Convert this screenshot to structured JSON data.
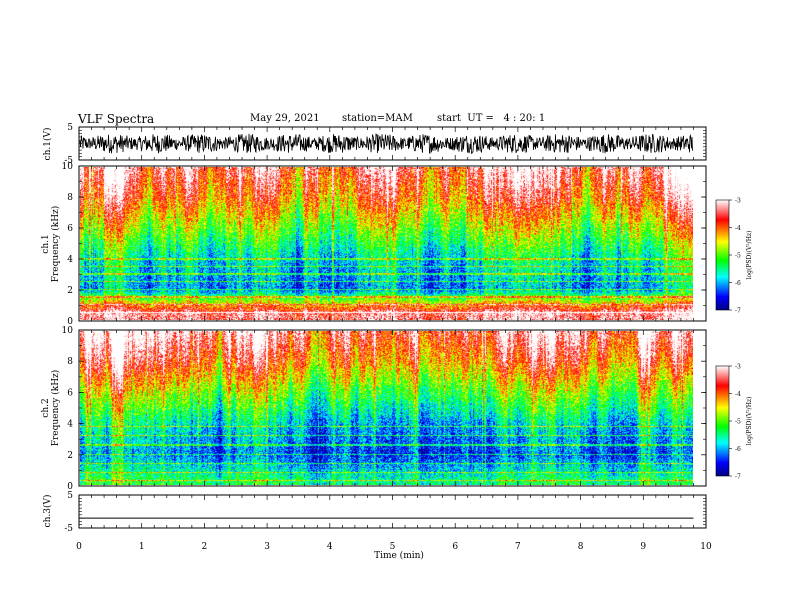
{
  "header": {
    "title": "VLF Spectra",
    "date": "May 29, 2021",
    "station": "station=MAM",
    "start": "start  UT =   4 : 20: 1"
  },
  "chart_data": [
    {
      "type": "line",
      "panel": "ch1-waveform",
      "ylabel": "ch.1(V)",
      "ylim": [
        -5,
        5
      ],
      "yticks": [
        "5",
        "-5"
      ],
      "note": "dense broadband noise waveform spanning roughly -3 to +3 V",
      "amplitude_range": [
        -3,
        3
      ]
    },
    {
      "type": "heatmap",
      "panel": "ch1-spectrogram",
      "ylabel_line1": "ch.1",
      "ylabel_line2": "Frequency (kHz)",
      "ylim": [
        0,
        10
      ],
      "yticks": [
        "0",
        "2",
        "4",
        "6",
        "8",
        "10"
      ],
      "colorbar": {
        "label": "log(PSD)(V²/Hz)",
        "range": [
          -7,
          -3
        ],
        "ticks": [
          "-3",
          "-4",
          "-5",
          "-6",
          "-7"
        ]
      },
      "lines_khz": [
        0.5,
        1.0,
        1.5,
        2.0,
        2.5,
        3.0,
        3.5,
        4.0
      ],
      "strong_line_khz": 0.5,
      "profile_log_psd": [
        {
          "freq_khz": 0.5,
          "log_psd": -3.3
        },
        {
          "freq_khz": 2,
          "log_psd": -6.1
        },
        {
          "freq_khz": 4,
          "log_psd": -5.7
        },
        {
          "freq_khz": 6,
          "log_psd": -4.8
        },
        {
          "freq_khz": 8,
          "log_psd": -3.9
        },
        {
          "freq_khz": 10,
          "log_psd": -3.3
        }
      ]
    },
    {
      "type": "heatmap",
      "panel": "ch2-spectrogram",
      "ylabel_line1": "ch.2",
      "ylabel_line2": "Frequency (kHz)",
      "ylim": [
        0,
        10
      ],
      "yticks": [
        "0",
        "2",
        "4",
        "6",
        "8",
        "10"
      ],
      "colorbar": {
        "label": "log(PSD)(V²/Hz)",
        "range": [
          -7,
          -3
        ],
        "ticks": [
          "-3",
          "-4",
          "-5",
          "-6",
          "-7"
        ]
      },
      "lines_khz": [
        0.3,
        0.8,
        1.4,
        2.0,
        2.6,
        3.2,
        3.8
      ],
      "profile_log_psd": [
        {
          "freq_khz": 0.3,
          "log_psd": -5.4
        },
        {
          "freq_khz": 2,
          "log_psd": -6.3
        },
        {
          "freq_khz": 4,
          "log_psd": -5.8
        },
        {
          "freq_khz": 6,
          "log_psd": -4.9
        },
        {
          "freq_khz": 8,
          "log_psd": -3.9
        },
        {
          "freq_khz": 10,
          "log_psd": -3.2
        }
      ]
    },
    {
      "type": "line",
      "panel": "ch3-waveform",
      "ylabel": "ch.3(V)",
      "ylim": [
        -5,
        5
      ],
      "yticks": [
        "5",
        "-5"
      ],
      "values": [
        -2,
        -2
      ],
      "x": [
        0,
        9.8
      ]
    }
  ],
  "xaxis": {
    "label": "Time (min)",
    "range": [
      0,
      10
    ],
    "data_end": 9.8,
    "ticks": [
      "0",
      "1",
      "2",
      "3",
      "4",
      "5",
      "6",
      "7",
      "8",
      "9",
      "10"
    ]
  },
  "colors": {
    "colormap": [
      "#000080",
      "#0000ff",
      "#00ffff",
      "#00ff00",
      "#ffff00",
      "#ff0000",
      "#ff9090",
      "#ffffff"
    ]
  }
}
